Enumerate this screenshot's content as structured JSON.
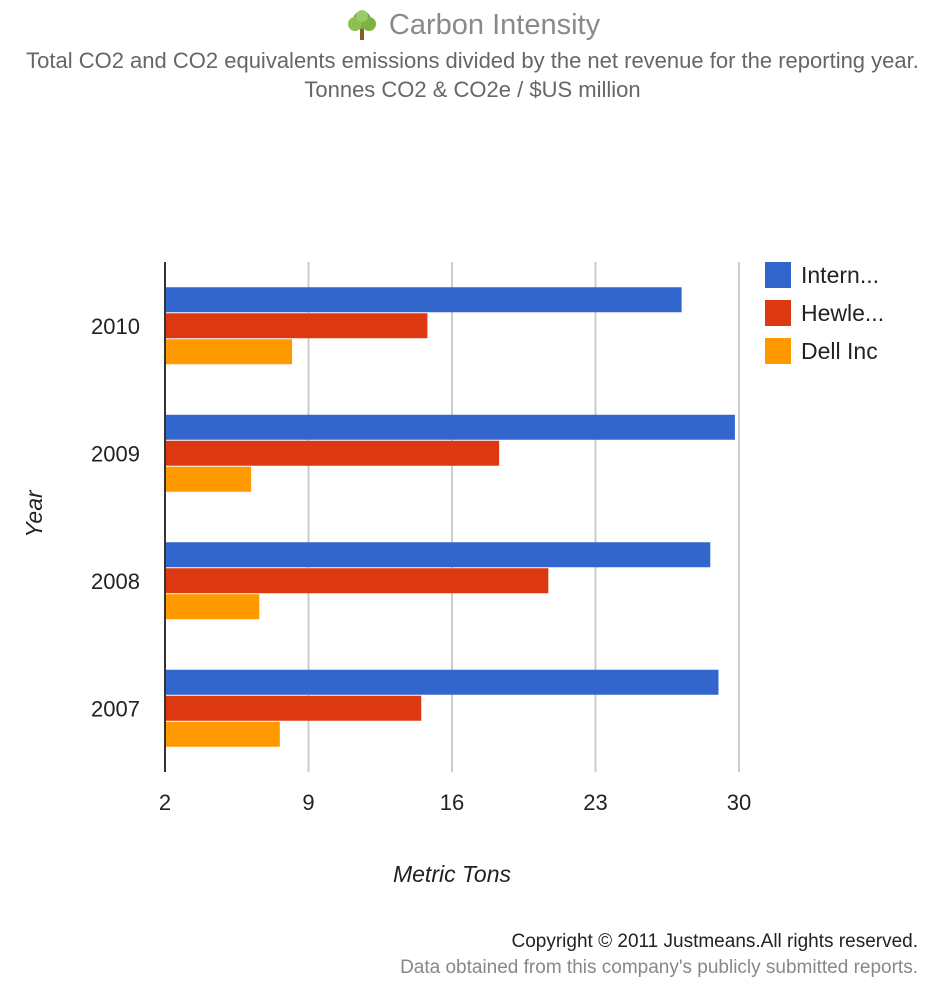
{
  "header": {
    "title": "Carbon Intensity",
    "subtitle": "Total CO2 and CO2 equivalents emissions divided by the net revenue for the reporting year. Tonnes CO2 & CO2e / $US million",
    "icon": "tree-icon"
  },
  "chart_data": {
    "type": "bar",
    "orientation": "horizontal",
    "categories": [
      "2010",
      "2009",
      "2008",
      "2007"
    ],
    "series": [
      {
        "name": "Intern...",
        "color": "#3366cc",
        "values": [
          27.2,
          29.8,
          28.6,
          29.0
        ]
      },
      {
        "name": "Hewle...",
        "color": "#dc3912",
        "values": [
          14.8,
          18.3,
          20.7,
          14.5
        ]
      },
      {
        "name": "Dell Inc",
        "color": "#ff9900",
        "values": [
          8.2,
          6.2,
          6.6,
          7.6
        ]
      }
    ],
    "xlabel": "Metric Tons",
    "ylabel": "Year",
    "xlim": [
      2,
      30
    ],
    "xticks": [
      "2",
      "9",
      "16",
      "23",
      "30"
    ],
    "grid": true,
    "legend": "right"
  },
  "footer": {
    "copyright": "Copyright © 2011 Justmeans.All rights reserved.",
    "source": "Data obtained from this company's publicly submitted reports."
  }
}
